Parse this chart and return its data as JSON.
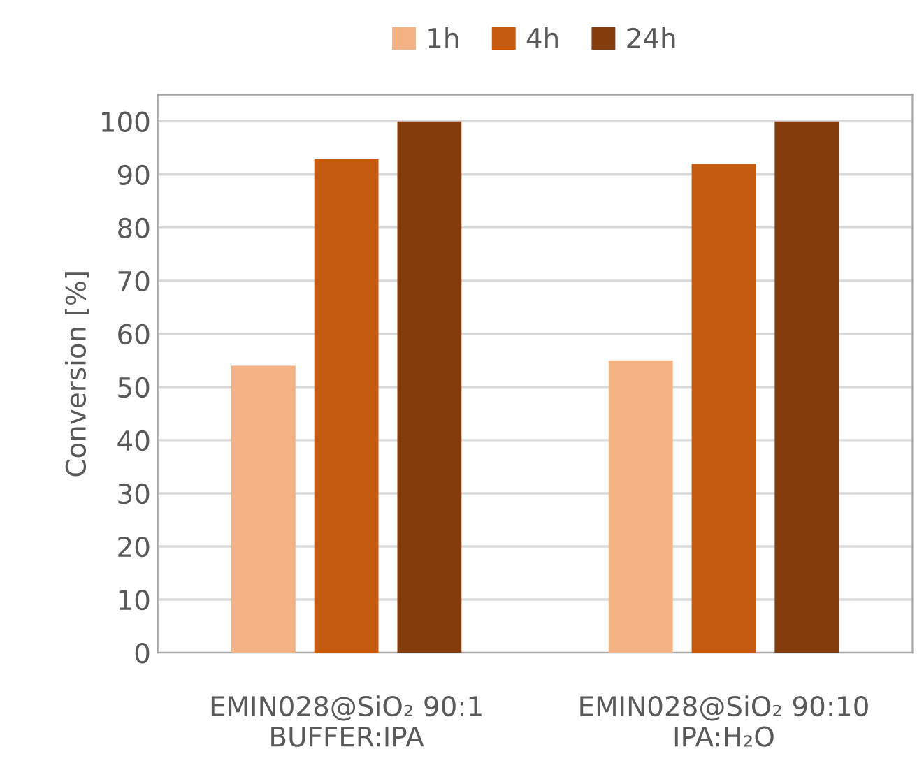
{
  "chart_data": {
    "type": "bar",
    "ylabel": "Conversion [%]",
    "categories": [
      "EMIN028@SiO₂ 90:1\nBUFFER:IPA",
      "EMIN028@SiO₂ 90:10\nIPA:H₂O"
    ],
    "series": [
      {
        "name": "1h",
        "color": "#f4b183",
        "values": [
          54,
          55
        ]
      },
      {
        "name": "4h",
        "color": "#c55a11",
        "values": [
          93,
          92
        ]
      },
      {
        "name": "24h",
        "color": "#843c0c",
        "values": [
          100,
          100
        ]
      }
    ],
    "ylim": [
      0,
      105
    ],
    "yticks": [
      0,
      10,
      20,
      30,
      40,
      50,
      60,
      70,
      80,
      90,
      100
    ],
    "grid": "y",
    "legend": "top"
  }
}
